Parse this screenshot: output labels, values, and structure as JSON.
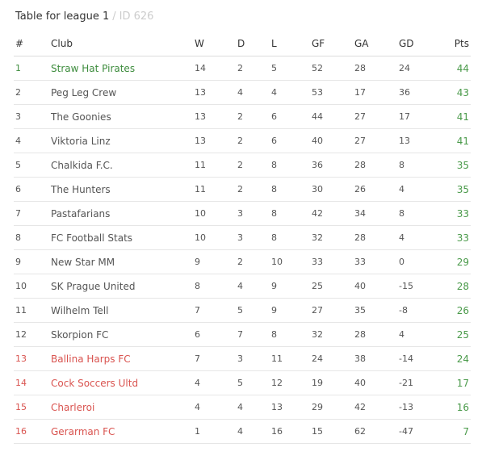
{
  "header": {
    "title": "Table for league 1",
    "separator": "/",
    "id_label": "ID 626"
  },
  "columns": {
    "pos": "#",
    "club": "Club",
    "w": "W",
    "d": "D",
    "l": "L",
    "gf": "GF",
    "ga": "GA",
    "gd": "GD",
    "pts": "Pts"
  },
  "colors": {
    "promotion": "#3d8c3d",
    "relegation": "#d9534f",
    "points": "#4a9a4a"
  },
  "rows": [
    {
      "pos": "1",
      "club": "Straw Hat Pirates",
      "w": "14",
      "d": "2",
      "l": "5",
      "gf": "52",
      "ga": "28",
      "gd": "24",
      "pts": "44",
      "zone": "top"
    },
    {
      "pos": "2",
      "club": "Peg Leg Crew",
      "w": "13",
      "d": "4",
      "l": "4",
      "gf": "53",
      "ga": "17",
      "gd": "36",
      "pts": "43",
      "zone": ""
    },
    {
      "pos": "3",
      "club": "The Goonies",
      "w": "13",
      "d": "2",
      "l": "6",
      "gf": "44",
      "ga": "27",
      "gd": "17",
      "pts": "41",
      "zone": ""
    },
    {
      "pos": "4",
      "club": "Viktoria Linz",
      "w": "13",
      "d": "2",
      "l": "6",
      "gf": "40",
      "ga": "27",
      "gd": "13",
      "pts": "41",
      "zone": ""
    },
    {
      "pos": "5",
      "club": "Chalkida F.C.",
      "w": "11",
      "d": "2",
      "l": "8",
      "gf": "36",
      "ga": "28",
      "gd": "8",
      "pts": "35",
      "zone": ""
    },
    {
      "pos": "6",
      "club": "The Hunters",
      "w": "11",
      "d": "2",
      "l": "8",
      "gf": "30",
      "ga": "26",
      "gd": "4",
      "pts": "35",
      "zone": ""
    },
    {
      "pos": "7",
      "club": "Pastafarians",
      "w": "10",
      "d": "3",
      "l": "8",
      "gf": "42",
      "ga": "34",
      "gd": "8",
      "pts": "33",
      "zone": ""
    },
    {
      "pos": "8",
      "club": "FC Football Stats",
      "w": "10",
      "d": "3",
      "l": "8",
      "gf": "32",
      "ga": "28",
      "gd": "4",
      "pts": "33",
      "zone": ""
    },
    {
      "pos": "9",
      "club": "New Star MM",
      "w": "9",
      "d": "2",
      "l": "10",
      "gf": "33",
      "ga": "33",
      "gd": "0",
      "pts": "29",
      "zone": ""
    },
    {
      "pos": "10",
      "club": "SK Prague United",
      "w": "8",
      "d": "4",
      "l": "9",
      "gf": "25",
      "ga": "40",
      "gd": "-15",
      "pts": "28",
      "zone": ""
    },
    {
      "pos": "11",
      "club": "Wilhelm Tell",
      "w": "7",
      "d": "5",
      "l": "9",
      "gf": "27",
      "ga": "35",
      "gd": "-8",
      "pts": "26",
      "zone": ""
    },
    {
      "pos": "12",
      "club": "Skorpion FC",
      "w": "6",
      "d": "7",
      "l": "8",
      "gf": "32",
      "ga": "28",
      "gd": "4",
      "pts": "25",
      "zone": ""
    },
    {
      "pos": "13",
      "club": "Ballina Harps FC",
      "w": "7",
      "d": "3",
      "l": "11",
      "gf": "24",
      "ga": "38",
      "gd": "-14",
      "pts": "24",
      "zone": "bottom"
    },
    {
      "pos": "14",
      "club": "Cock Soccers Ultd",
      "w": "4",
      "d": "5",
      "l": "12",
      "gf": "19",
      "ga": "40",
      "gd": "-21",
      "pts": "17",
      "zone": "bottom"
    },
    {
      "pos": "15",
      "club": "Charleroi",
      "w": "4",
      "d": "4",
      "l": "13",
      "gf": "29",
      "ga": "42",
      "gd": "-13",
      "pts": "16",
      "zone": "bottom"
    },
    {
      "pos": "16",
      "club": "Gerarman FC",
      "w": "1",
      "d": "4",
      "l": "16",
      "gf": "15",
      "ga": "62",
      "gd": "-47",
      "pts": "7",
      "zone": "bottom"
    }
  ]
}
